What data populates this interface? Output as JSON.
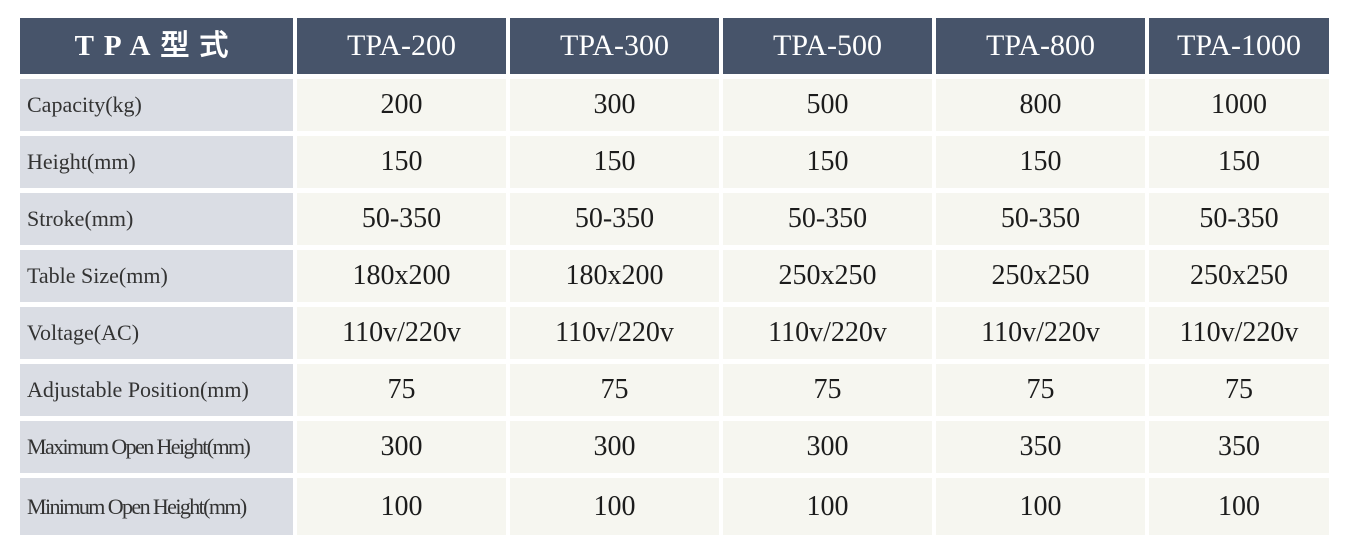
{
  "table": {
    "header": {
      "label": "TPA型式",
      "models": [
        "TPA-200",
        "TPA-300",
        "TPA-500",
        "TPA-800",
        "TPA-1000"
      ]
    },
    "rows": [
      {
        "label": "Capacity(kg)",
        "values": [
          "200",
          "300",
          "500",
          "800",
          "1000"
        ]
      },
      {
        "label": "Height(mm)",
        "values": [
          "150",
          "150",
          "150",
          "150",
          "150"
        ]
      },
      {
        "label": "Stroke(mm)",
        "values": [
          "50-350",
          "50-350",
          "50-350",
          "50-350",
          "50-350"
        ]
      },
      {
        "label": "Table Size(mm)",
        "values": [
          "180x200",
          "180x200",
          "250x250",
          "250x250",
          "250x250"
        ]
      },
      {
        "label": "Voltage(AC)",
        "values": [
          "110v/220v",
          "110v/220v",
          "110v/220v",
          "110v/220v",
          "110v/220v"
        ]
      },
      {
        "label": "Adjustable Position(mm)",
        "values": [
          "75",
          "75",
          "75",
          "75",
          "75"
        ]
      },
      {
        "label": "Maximum Open Height(mm)",
        "values": [
          "300",
          "300",
          "300",
          "350",
          "350"
        ]
      },
      {
        "label": "Minimum Open Height(mm)",
        "values": [
          "100",
          "100",
          "100",
          "100",
          "100"
        ]
      }
    ],
    "colors": {
      "header_bg": "#47546a",
      "label_bg": "#dadde4",
      "cell_bg": "#f6f6f0"
    }
  }
}
